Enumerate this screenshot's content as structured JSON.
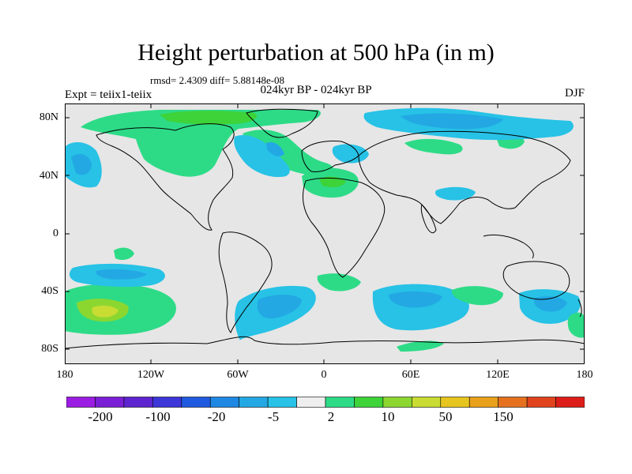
{
  "title": "Height perturbation at 500 hPa (in m)",
  "stats": "rmsd= 2.4309 diff= 5.88148e-08",
  "experiment": "Expt = teiix1-teiix",
  "period": "024kyr BP - 024kyr BP",
  "season": "DJF",
  "map": {
    "lat_labels": [
      "80N",
      "40N",
      "0",
      "40S",
      "80S"
    ],
    "lon_labels": [
      "180",
      "120W",
      "60W",
      "0",
      "60E",
      "120E",
      "180"
    ],
    "background_color": "#e6e6e6"
  },
  "colorbar": {
    "colors": [
      "#9b1de3",
      "#7a1fd6",
      "#5d24d0",
      "#3d36d8",
      "#1f5ae0",
      "#1e88e3",
      "#23a8e4",
      "#27c2e6",
      "#eeeeee",
      "#2ddb87",
      "#3dd339",
      "#8bd730",
      "#c8dc33",
      "#e7c51f",
      "#e9a01c",
      "#e5711f",
      "#e0431e",
      "#dd1d19"
    ],
    "labels": [
      "-200",
      "-100",
      "-20",
      "-5",
      "2",
      "10",
      "50",
      "150"
    ]
  }
}
